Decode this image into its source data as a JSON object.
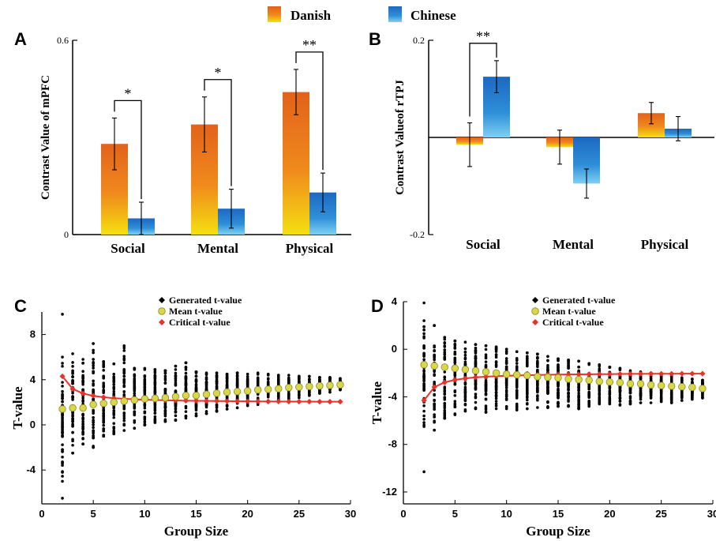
{
  "legend": {
    "entries": [
      {
        "label": "Danish",
        "colors": [
          "#f4e010",
          "#f08a1c",
          "#e2621b"
        ]
      },
      {
        "label": "Chinese",
        "colors": [
          "#7fd0f2",
          "#2f8fd8",
          "#1d68c2"
        ]
      }
    ]
  },
  "chart_data": [
    {
      "panel": "A",
      "type": "bar",
      "ylabel": "Contrast Value of mPFC",
      "ylim": [
        0,
        0.6
      ],
      "yticks": [
        "0",
        "0.6"
      ],
      "categories": [
        "Social",
        "Mental",
        "Physical"
      ],
      "series": [
        {
          "name": "Danish",
          "values": [
            0.28,
            0.34,
            0.44
          ],
          "errors": [
            0.08,
            0.085,
            0.07
          ]
        },
        {
          "name": "Chinese",
          "values": [
            0.05,
            0.08,
            0.13
          ],
          "errors": [
            0.05,
            0.06,
            0.06
          ]
        }
      ],
      "significance": [
        "*",
        "*",
        "**"
      ]
    },
    {
      "panel": "B",
      "type": "bar",
      "ylabel": "Contrast Valueof rTPJ",
      "ylim": [
        -0.2,
        0.2
      ],
      "yticks": [
        "0.2",
        "-0.2"
      ],
      "categories": [
        "Social",
        "Mental",
        "Physical"
      ],
      "series": [
        {
          "name": "Danish",
          "values": [
            -0.015,
            -0.02,
            0.05
          ],
          "errors": [
            0.045,
            0.035,
            0.022
          ]
        },
        {
          "name": "Chinese",
          "values": [
            0.125,
            -0.095,
            0.018
          ],
          "errors": [
            0.033,
            0.03,
            0.025
          ]
        }
      ],
      "significance": [
        "**",
        "",
        ""
      ]
    },
    {
      "panel": "C",
      "type": "scatter",
      "xlabel": "Group Size",
      "ylabel": "T-value",
      "xlim": [
        0,
        30
      ],
      "ylim": [
        -7,
        10
      ],
      "xticks": [
        0,
        5,
        10,
        15,
        20,
        25,
        30
      ],
      "yticks": [
        -4,
        0,
        4,
        8
      ],
      "legend": [
        "Generated t-value",
        "Mean t-value",
        "Critical t-value"
      ],
      "x": [
        2,
        3,
        4,
        5,
        6,
        7,
        8,
        9,
        10,
        11,
        12,
        13,
        14,
        15,
        16,
        17,
        18,
        19,
        20,
        21,
        22,
        23,
        24,
        25,
        26,
        27,
        28,
        29
      ],
      "generated_lo": [
        -5.0,
        -2.5,
        -1.7,
        -2.0,
        -1.0,
        -0.8,
        -0.5,
        -0.3,
        0,
        0.2,
        0.3,
        0.4,
        0.6,
        0.8,
        1.0,
        1.2,
        1.4,
        1.5,
        1.7,
        1.8,
        2.0,
        2.1,
        2.3,
        2.4,
        2.6,
        2.8,
        2.9,
        3.1
      ],
      "generated_hi": [
        6.0,
        6.3,
        5.8,
        7.2,
        5.6,
        5.4,
        7.0,
        5.0,
        5.0,
        4.9,
        4.8,
        5.2,
        5.5,
        4.7,
        4.6,
        4.6,
        4.5,
        4.6,
        4.5,
        4.6,
        4.5,
        4.4,
        4.4,
        4.3,
        4.3,
        4.2,
        4.2,
        4.1
      ],
      "generated_outliers": [
        [
          2,
          9.8
        ],
        [
          2,
          -6.5
        ],
        [
          2,
          -4.2
        ]
      ],
      "mean_t": [
        1.4,
        1.5,
        1.5,
        1.8,
        1.9,
        2.0,
        2.1,
        2.2,
        2.3,
        2.35,
        2.4,
        2.5,
        2.6,
        2.6,
        2.7,
        2.8,
        2.9,
        2.95,
        3.0,
        3.1,
        3.15,
        3.2,
        3.3,
        3.35,
        3.4,
        3.45,
        3.5,
        3.55
      ],
      "critical_t": [
        4.3,
        3.18,
        2.78,
        2.57,
        2.45,
        2.36,
        2.31,
        2.26,
        2.23,
        2.2,
        2.18,
        2.16,
        2.14,
        2.13,
        2.12,
        2.11,
        2.1,
        2.09,
        2.09,
        2.08,
        2.07,
        2.07,
        2.06,
        2.06,
        2.06,
        2.05,
        2.05,
        2.05
      ]
    },
    {
      "panel": "D",
      "type": "scatter",
      "xlabel": "Group Size",
      "ylabel": "T-value",
      "xlim": [
        0,
        30
      ],
      "ylim": [
        -13,
        4
      ],
      "xticks": [
        0,
        5,
        10,
        15,
        20,
        25,
        30
      ],
      "yticks": [
        -12,
        -8,
        -4,
        0,
        4
      ],
      "legend": [
        "Generated t-value",
        "Mean t-value",
        "Critical t-value"
      ],
      "x": [
        2,
        3,
        4,
        5,
        6,
        7,
        8,
        9,
        10,
        11,
        12,
        13,
        14,
        15,
        16,
        17,
        18,
        19,
        20,
        21,
        22,
        23,
        24,
        25,
        26,
        27,
        28,
        29
      ],
      "generated_lo": [
        -6.5,
        -6.8,
        -5.8,
        -5.5,
        -5.2,
        -5.0,
        -5.3,
        -5.0,
        -5.0,
        -5.1,
        -5.0,
        -4.9,
        -4.9,
        -4.8,
        -4.8,
        -5.0,
        -4.8,
        -4.6,
        -4.6,
        -4.7,
        -4.6,
        -4.5,
        -4.5,
        -4.4,
        -4.5,
        -4.3,
        -4.2,
        -4.1
      ],
      "generated_hi": [
        2.4,
        2.0,
        1.0,
        0.7,
        0.6,
        0.4,
        0.3,
        0.2,
        0,
        -0.2,
        -0.3,
        -0.4,
        -0.6,
        -0.8,
        -0.9,
        -1.0,
        -1.2,
        -1.3,
        -1.5,
        -1.6,
        -1.8,
        -1.9,
        -2.0,
        -2.1,
        -2.2,
        -2.4,
        -2.5,
        -2.6
      ],
      "generated_outliers": [
        [
          2,
          3.9
        ],
        [
          2,
          -10.3
        ]
      ],
      "mean_t": [
        -1.3,
        -1.4,
        -1.5,
        -1.6,
        -1.7,
        -1.8,
        -1.9,
        -2.0,
        -2.1,
        -2.15,
        -2.2,
        -2.3,
        -2.35,
        -2.4,
        -2.5,
        -2.55,
        -2.6,
        -2.7,
        -2.75,
        -2.8,
        -2.9,
        -2.9,
        -3.0,
        -3.05,
        -3.1,
        -3.15,
        -3.2,
        -3.3
      ],
      "critical_t": [
        -4.3,
        -3.18,
        -2.78,
        -2.57,
        -2.45,
        -2.36,
        -2.31,
        -2.26,
        -2.23,
        -2.2,
        -2.18,
        -2.16,
        -2.14,
        -2.13,
        -2.12,
        -2.11,
        -2.1,
        -2.09,
        -2.09,
        -2.08,
        -2.07,
        -2.07,
        -2.06,
        -2.06,
        -2.06,
        -2.05,
        -2.05,
        -2.05
      ]
    }
  ]
}
